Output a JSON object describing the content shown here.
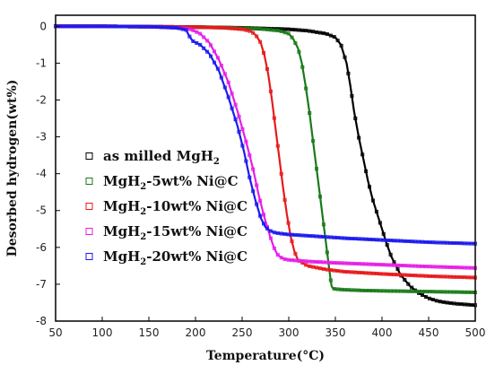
{
  "chart_data": {
    "type": "line",
    "title": "",
    "xlabel": "Temperature(°C)",
    "ylabel": "Desorbed hydrogen(wt%)",
    "xlim": [
      50,
      500
    ],
    "ylim": [
      -8,
      0.3
    ],
    "xticks": [
      "50",
      "100",
      "150",
      "200",
      "250",
      "300",
      "350",
      "400",
      "450",
      "500"
    ],
    "yticks": [
      "0",
      "-1",
      "-2",
      "-3",
      "-4",
      "-5",
      "-6",
      "-7",
      "-8"
    ],
    "legend_position": "left",
    "marker": "hollow-square",
    "series": [
      {
        "name": "as milled MgH",
        "name_sub": "2",
        "name_suffix": "",
        "color": "#000000",
        "x": [
          50,
          100,
          150,
          200,
          250,
          300,
          320,
          340,
          350,
          356,
          362,
          366,
          370,
          375,
          380,
          385,
          390,
          395,
          400,
          405,
          410,
          415,
          420,
          430,
          440,
          450,
          460,
          470,
          480,
          490,
          500
        ],
        "y": [
          0,
          0,
          -0.01,
          -0.02,
          -0.04,
          -0.08,
          -0.12,
          -0.2,
          -0.3,
          -0.5,
          -1.0,
          -1.6,
          -2.3,
          -3.0,
          -3.6,
          -4.2,
          -4.7,
          -5.1,
          -5.5,
          -5.9,
          -6.25,
          -6.5,
          -6.75,
          -7.05,
          -7.25,
          -7.38,
          -7.46,
          -7.5,
          -7.53,
          -7.55,
          -7.57
        ]
      },
      {
        "name": "MgH",
        "name_sub": "2",
        "name_suffix": "-5wt% Ni@C",
        "color": "#1a7a1a",
        "x": [
          50,
          100,
          150,
          200,
          240,
          270,
          290,
          300,
          305,
          310,
          314,
          318,
          322,
          326,
          330,
          334,
          338,
          342,
          345,
          346,
          347,
          348,
          350,
          360,
          380,
          400,
          450,
          500
        ],
        "y": [
          0,
          0,
          -0.01,
          -0.02,
          -0.04,
          -0.07,
          -0.12,
          -0.2,
          -0.35,
          -0.6,
          -1.0,
          -1.6,
          -2.3,
          -3.1,
          -3.9,
          -4.7,
          -5.5,
          -6.3,
          -6.9,
          -7.05,
          -7.1,
          -7.12,
          -7.13,
          -7.15,
          -7.17,
          -7.18,
          -7.2,
          -7.22
        ]
      },
      {
        "name": "MgH",
        "name_sub": "2",
        "name_suffix": "-10wt% Ni@C",
        "color": "#e8191c",
        "x": [
          50,
          100,
          150,
          200,
          230,
          250,
          260,
          265,
          270,
          274,
          278,
          282,
          286,
          290,
          294,
          298,
          302,
          306,
          310,
          320,
          340,
          360,
          400,
          450,
          500
        ],
        "y": [
          0,
          0,
          -0.01,
          -0.02,
          -0.04,
          -0.08,
          -0.14,
          -0.25,
          -0.45,
          -0.8,
          -1.3,
          -2.0,
          -2.8,
          -3.6,
          -4.4,
          -5.1,
          -5.7,
          -6.1,
          -6.35,
          -6.5,
          -6.6,
          -6.66,
          -6.72,
          -6.78,
          -6.82
        ]
      },
      {
        "name": "MgH",
        "name_sub": "2",
        "name_suffix": "-15wt% Ni@C",
        "color": "#e61ee6",
        "x": [
          50,
          100,
          150,
          180,
          195,
          205,
          215,
          225,
          235,
          245,
          255,
          262,
          268,
          274,
          280,
          284,
          288,
          292,
          296,
          300,
          320,
          350,
          400,
          450,
          500
        ],
        "y": [
          0,
          0,
          -0.01,
          -0.04,
          -0.08,
          -0.2,
          -0.45,
          -0.9,
          -1.5,
          -2.3,
          -3.2,
          -3.9,
          -4.6,
          -5.2,
          -5.7,
          -6.0,
          -6.2,
          -6.28,
          -6.32,
          -6.34,
          -6.38,
          -6.42,
          -6.47,
          -6.52,
          -6.56
        ]
      },
      {
        "name": "MgH",
        "name_sub": "2",
        "name_suffix": "-20wt% Ni@C",
        "color": "#1a1aee",
        "x": [
          50,
          100,
          150,
          180,
          190,
          193,
          197,
          205,
          215,
          225,
          235,
          245,
          252,
          258,
          264,
          270,
          275,
          280,
          285,
          290,
          300,
          330,
          360,
          400,
          450,
          500
        ],
        "y": [
          0,
          0,
          -0.01,
          -0.04,
          -0.1,
          -0.25,
          -0.4,
          -0.5,
          -0.75,
          -1.2,
          -1.9,
          -2.7,
          -3.4,
          -4.1,
          -4.7,
          -5.2,
          -5.45,
          -5.55,
          -5.6,
          -5.62,
          -5.65,
          -5.7,
          -5.75,
          -5.8,
          -5.86,
          -5.9
        ]
      }
    ]
  }
}
